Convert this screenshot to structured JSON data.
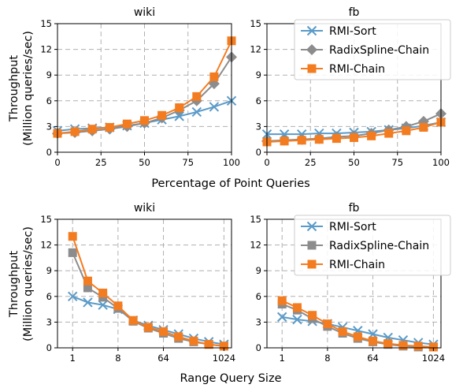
{
  "figure": {
    "top_row_xlabel": "Percentage of Point Queries",
    "bottom_row_xlabel": "Range Query Size",
    "ylabel_line1": "Throughput",
    "ylabel_line2": "(Million queries/sec)"
  },
  "colors": {
    "RMI-Sort": "#5b9bc8",
    "RadixSpline-Chain": "#8c8c8c",
    "RMI-Chain": "#f47c20"
  },
  "legend_entries": [
    {
      "name": "RMI-Sort",
      "marker": "x"
    },
    {
      "name": "RadixSpline-Chain",
      "marker": "diamond"
    },
    {
      "name": "RMI-Chain",
      "marker": "square"
    }
  ],
  "legend_entries_bottom": [
    {
      "name": "RMI-Sort",
      "marker": "x"
    },
    {
      "name": "RadixSpline-Chain",
      "marker": "square"
    },
    {
      "name": "RMI-Chain",
      "marker": "square"
    }
  ],
  "chart_data": [
    {
      "type": "line",
      "title": "wiki",
      "xlabel": "Percentage of Point Queries",
      "ylabel": "Throughput (Million queries/sec)",
      "xlim": [
        0,
        100
      ],
      "ylim": [
        0,
        15
      ],
      "xticks": [
        0,
        25,
        50,
        75,
        100
      ],
      "yticks": [
        0,
        3,
        6,
        9,
        12,
        15
      ],
      "grid": true,
      "x": [
        0,
        10,
        20,
        30,
        40,
        50,
        60,
        70,
        80,
        90,
        100
      ],
      "series": [
        {
          "name": "RMI-Sort",
          "marker": "x",
          "values": [
            2.5,
            2.7,
            2.8,
            2.9,
            3.1,
            3.4,
            3.8,
            4.2,
            4.7,
            5.3,
            6.0
          ]
        },
        {
          "name": "RadixSpline-Chain",
          "marker": "diamond",
          "values": [
            2.2,
            2.3,
            2.5,
            2.7,
            3.0,
            3.4,
            4.0,
            4.9,
            6.0,
            8.0,
            11.1
          ]
        },
        {
          "name": "RMI-Chain",
          "marker": "square",
          "values": [
            2.2,
            2.4,
            2.7,
            2.9,
            3.3,
            3.7,
            4.3,
            5.2,
            6.5,
            8.8,
            13.0
          ]
        }
      ]
    },
    {
      "type": "line",
      "title": "fb",
      "xlabel": "Percentage of Point Queries",
      "xlim": [
        0,
        100
      ],
      "ylim": [
        0,
        15
      ],
      "xticks": [
        0,
        25,
        50,
        75,
        100
      ],
      "yticks": [
        0,
        3,
        6,
        9,
        12,
        15
      ],
      "grid": true,
      "legend": "top-right",
      "x": [
        0,
        10,
        20,
        30,
        40,
        50,
        60,
        70,
        80,
        90,
        100
      ],
      "series": [
        {
          "name": "RMI-Sort",
          "marker": "x",
          "values": [
            2.1,
            2.1,
            2.1,
            2.2,
            2.2,
            2.3,
            2.4,
            2.6,
            2.8,
            3.1,
            3.5
          ]
        },
        {
          "name": "RadixSpline-Chain",
          "marker": "diamond",
          "values": [
            1.3,
            1.4,
            1.5,
            1.6,
            1.8,
            1.9,
            2.2,
            2.6,
            3.0,
            3.6,
            4.5
          ]
        },
        {
          "name": "RMI-Chain",
          "marker": "square",
          "values": [
            1.2,
            1.3,
            1.4,
            1.5,
            1.6,
            1.7,
            1.9,
            2.2,
            2.5,
            2.9,
            3.5
          ]
        }
      ]
    },
    {
      "type": "line",
      "title": "wiki",
      "xlabel": "Range Query Size",
      "ylabel": "Throughput (Million queries/sec)",
      "xscale": "log2",
      "xlim": [
        0.5,
        1448
      ],
      "ylim": [
        0,
        15
      ],
      "xticks": [
        1,
        8,
        64,
        1024
      ],
      "yticks": [
        0,
        3,
        6,
        9,
        12,
        15
      ],
      "grid": true,
      "x": [
        1,
        2,
        4,
        8,
        16,
        32,
        64,
        128,
        256,
        512,
        1024
      ],
      "series": [
        {
          "name": "RMI-Sort",
          "marker": "x",
          "values": [
            6.0,
            5.3,
            5.0,
            4.5,
            3.2,
            2.6,
            2.1,
            1.6,
            1.1,
            0.7,
            0.4
          ]
        },
        {
          "name": "RadixSpline-Chain",
          "marker": "square",
          "values": [
            11.1,
            7.0,
            5.9,
            4.6,
            3.1,
            2.3,
            1.7,
            1.1,
            0.7,
            0.4,
            0.2
          ]
        },
        {
          "name": "RMI-Chain",
          "marker": "square",
          "values": [
            13.0,
            7.8,
            6.4,
            4.9,
            3.2,
            2.4,
            1.9,
            1.3,
            0.8,
            0.4,
            0.2
          ]
        }
      ]
    },
    {
      "type": "line",
      "title": "fb",
      "xlabel": "Range Query Size",
      "xscale": "log2",
      "xlim": [
        0.5,
        1448
      ],
      "ylim": [
        0,
        15
      ],
      "xticks": [
        1,
        8,
        64,
        1024
      ],
      "yticks": [
        0,
        3,
        6,
        9,
        12,
        15
      ],
      "grid": true,
      "legend": "top-right",
      "x": [
        1,
        2,
        4,
        8,
        16,
        32,
        64,
        128,
        256,
        512,
        1024
      ],
      "series": [
        {
          "name": "RMI-Sort",
          "marker": "x",
          "values": [
            3.6,
            3.3,
            3.1,
            2.8,
            2.4,
            2.0,
            1.6,
            1.2,
            0.9,
            0.6,
            0.4
          ]
        },
        {
          "name": "RadixSpline-Chain",
          "marker": "square",
          "values": [
            5.1,
            4.4,
            3.4,
            2.5,
            1.7,
            1.1,
            0.7,
            0.4,
            0.2,
            0.1,
            0.1
          ]
        },
        {
          "name": "RMI-Chain",
          "marker": "square",
          "values": [
            5.5,
            4.7,
            3.8,
            2.8,
            1.9,
            1.3,
            0.8,
            0.5,
            0.3,
            0.2,
            0.1
          ]
        }
      ]
    }
  ]
}
